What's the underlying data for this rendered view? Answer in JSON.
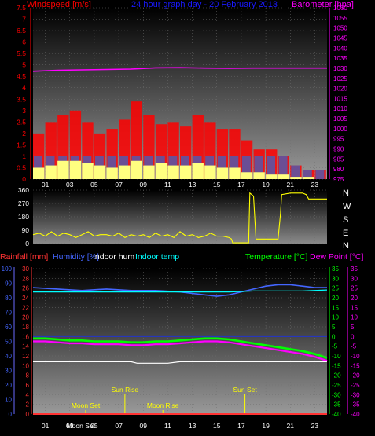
{
  "colors": {
    "background": "#000000",
    "wind_speed": "#ff0000",
    "wind_avg": "#ffff80",
    "wind_gust_base": "#3366cc",
    "barometer": "#ff00ff",
    "title": "#1a1aff",
    "direction": "#ffff00",
    "rainfall": "#ff3333",
    "humidity": "#4466ff",
    "indoor_hum": "#ffffff",
    "indoor_temp": "#00ffff",
    "temperature": "#00ff00",
    "dew_point": "#ff00ff",
    "moon_sun": "#ffff00",
    "axis_left_bottom": "#6a6aff",
    "gridlines": "#707070"
  },
  "top_panel": {
    "left_label": "Windspeed [m/s]",
    "title": "24 hour graph day - 20 February 2013",
    "right_label": "Barometer [hpa]"
  },
  "direction_panel": {
    "compass_labels": [
      "N",
      "W",
      "S",
      "E",
      "N"
    ]
  },
  "bottom_panel": {
    "labels": {
      "rainfall": "Rainfall [mm]",
      "humidity": "Humidity [%]",
      "indoor_hum": "Indoor hum",
      "indoor_temp": "Indoor temp",
      "temperature": "Temperature [°C]",
      "dew_point": "Dew Point [°C]"
    },
    "events": [
      {
        "label": "Moon Set",
        "hour": 4.3,
        "tier": "low"
      },
      {
        "label": "Sun Rise",
        "hour": 7.5,
        "tier": "high"
      },
      {
        "label": "Moon Rise",
        "hour": 10.6,
        "tier": "low"
      },
      {
        "label": "Sun Set",
        "hour": 17.3,
        "tier": "high"
      },
      {
        "label": "Moon Set",
        "hour": 3.9,
        "tier": "bottom"
      }
    ]
  },
  "chart_data": [
    {
      "type": "area",
      "title": "24 hour graph day - 20 February 2013",
      "x_ticks": [
        "01",
        "03",
        "05",
        "07",
        "09",
        "11",
        "13",
        "15",
        "17",
        "19",
        "21",
        "23"
      ],
      "xlim_hours": [
        0,
        24
      ],
      "left_axis": {
        "label": "Windspeed [m/s]",
        "ylim": [
          0,
          7.5
        ],
        "ticks": [
          "0",
          "0.5",
          "1",
          "1.5",
          "2",
          "2.5",
          "3",
          "3.5",
          "4",
          "4.5",
          "5",
          "5.5",
          "6",
          "6.5",
          "7",
          "7.5"
        ]
      },
      "right_axis": {
        "label": "Barometer [hpa]",
        "ylim": [
          975,
          1060
        ],
        "ticks": [
          "975",
          "980",
          "985",
          "990",
          "995",
          "1000",
          "1005",
          "1010",
          "1015",
          "1020",
          "1025",
          "1030",
          "1035",
          "1040",
          "1045",
          "1050",
          "1055",
          "1060"
        ]
      },
      "series": [
        {
          "name": "Windspeed",
          "axis": "left",
          "style": "bars",
          "x": [
            0.5,
            1.5,
            2.5,
            3.5,
            4.5,
            5.5,
            6.5,
            7.5,
            8.5,
            9.5,
            10.5,
            11.5,
            12.5,
            13.5,
            14.5,
            15.5,
            16.5,
            17.5,
            18.5,
            19.5,
            20.5,
            21.5,
            22.5,
            23.5
          ],
          "values": [
            2.0,
            2.5,
            2.8,
            3.0,
            2.5,
            2.0,
            2.2,
            2.6,
            3.4,
            2.8,
            2.4,
            2.5,
            2.3,
            2.8,
            2.5,
            2.2,
            2.2,
            1.7,
            1.3,
            1.3,
            1.0,
            0.6,
            0.4,
            0.4
          ]
        },
        {
          "name": "Wind avg",
          "axis": "left",
          "style": "bars",
          "x": [
            0.5,
            1.5,
            2.5,
            3.5,
            4.5,
            5.5,
            6.5,
            7.5,
            8.5,
            9.5,
            10.5,
            11.5,
            12.5,
            13.5,
            14.5,
            15.5,
            16.5,
            17.5,
            18.5,
            19.5,
            20.5,
            21.5,
            22.5,
            23.5
          ],
          "values": [
            0.5,
            0.6,
            0.8,
            0.8,
            0.7,
            0.6,
            0.5,
            0.6,
            0.8,
            0.6,
            0.7,
            0.6,
            0.6,
            0.7,
            0.6,
            0.5,
            0.5,
            0.3,
            0.3,
            0.2,
            0.2,
            0.1,
            0.1,
            0.0
          ]
        },
        {
          "name": "Barometer",
          "axis": "right",
          "style": "line",
          "x": [
            0,
            2,
            4,
            6,
            8,
            10,
            12,
            14,
            16,
            18,
            20,
            22,
            24
          ],
          "values": [
            1028.5,
            1029.0,
            1029.2,
            1029.4,
            1029.6,
            1030.2,
            1030.3,
            1030.1,
            1030.0,
            1030.1,
            1030.1,
            1030.1,
            1030.1
          ]
        }
      ]
    },
    {
      "type": "line",
      "x_ticks": [],
      "xlim_hours": [
        0,
        24
      ],
      "left_axis": {
        "label": "",
        "ylim": [
          0,
          360
        ],
        "ticks": [
          "0",
          "90",
          "180",
          "270",
          "360"
        ]
      },
      "series": [
        {
          "name": "Wind direction",
          "axis": "left",
          "style": "line",
          "x": [
            0,
            0.5,
            1,
            1.5,
            2,
            2.5,
            3,
            3.5,
            4,
            4.5,
            5,
            5.5,
            6,
            6.5,
            7,
            7.5,
            8,
            8.5,
            9,
            9.5,
            10,
            10.5,
            11,
            11.5,
            12,
            12.5,
            13,
            13.5,
            14,
            14.5,
            15,
            15.5,
            16,
            16.2,
            16.3,
            17,
            17.6,
            17.7,
            18,
            18.2,
            18.3,
            19,
            20,
            20.2,
            20.3,
            21,
            22,
            22.3,
            22.5,
            23,
            24
          ],
          "values": [
            60,
            70,
            50,
            80,
            50,
            70,
            60,
            40,
            60,
            80,
            50,
            60,
            60,
            50,
            70,
            40,
            60,
            50,
            60,
            40,
            70,
            50,
            60,
            40,
            80,
            50,
            60,
            40,
            50,
            70,
            50,
            50,
            40,
            30,
            5,
            5,
            5,
            340,
            320,
            30,
            30,
            30,
            30,
            200,
            330,
            340,
            340,
            330,
            300,
            300,
            300
          ]
        }
      ]
    },
    {
      "type": "line",
      "x_ticks": [
        "01",
        "03",
        "05",
        "07",
        "09",
        "11",
        "13",
        "15",
        "17",
        "19",
        "21",
        "23"
      ],
      "xlim_hours": [
        0,
        24
      ],
      "left_axis": {
        "label": "Humidity [%]",
        "ylim": [
          0,
          100
        ],
        "ticks": [
          "0",
          "10",
          "20",
          "30",
          "40",
          "50",
          "60",
          "70",
          "80",
          "90",
          "100"
        ]
      },
      "rain_axis": {
        "label": "Rainfall [mm]",
        "ylim": [
          0,
          30
        ],
        "ticks": [
          "0",
          "2",
          "4",
          "6",
          "8",
          "10",
          "12",
          "14",
          "16",
          "18",
          "20",
          "22",
          "24",
          "26",
          "28",
          "30"
        ]
      },
      "right_axis": {
        "label": "Temperature [°C]",
        "ylim": [
          -40,
          35
        ],
        "ticks": [
          "35",
          "30",
          "25",
          "20",
          "15",
          "10",
          "5",
          "0",
          "-5",
          "-10",
          "-15",
          "-20",
          "-25",
          "-30",
          "-35",
          "-40"
        ]
      },
      "series": [
        {
          "name": "Humidity",
          "axis": "left",
          "x": [
            0,
            2,
            4,
            6,
            8,
            10,
            12,
            13,
            14,
            15,
            16,
            17,
            18,
            19,
            20,
            21,
            22,
            23,
            24
          ],
          "values": [
            87,
            86,
            85,
            86,
            85,
            85,
            84,
            83,
            82,
            81,
            82,
            84,
            86,
            88,
            89,
            89,
            88,
            87,
            87
          ]
        },
        {
          "name": "Indoor hum",
          "axis": "left",
          "x": [
            0,
            3,
            6,
            7,
            8,
            8.5,
            9,
            10,
            11,
            12,
            14,
            16,
            18,
            20,
            22,
            24
          ],
          "values": [
            36,
            36,
            36,
            36,
            36,
            35,
            35,
            35,
            35,
            36,
            36,
            36,
            36,
            36,
            36,
            36
          ]
        },
        {
          "name": "Indoor temp",
          "axis": "right",
          "x": [
            0,
            4,
            8,
            12,
            16,
            18,
            20,
            22,
            24
          ],
          "values": [
            23,
            23,
            23,
            23,
            23,
            23.5,
            23.5,
            23.5,
            24
          ]
        },
        {
          "name": "Temperature",
          "axis": "right",
          "x": [
            0,
            1,
            2,
            3,
            4,
            5,
            6,
            7,
            8,
            9,
            10,
            11,
            12,
            13,
            14,
            15,
            16,
            17,
            18,
            19,
            20,
            21,
            22,
            23,
            24
          ],
          "values": [
            -1,
            -1,
            -1.5,
            -2,
            -2,
            -2.5,
            -2.5,
            -2.5,
            -3,
            -3,
            -2.5,
            -2.5,
            -2,
            -1.5,
            -1,
            -1,
            -1.5,
            -2.5,
            -3.5,
            -4.5,
            -5.5,
            -6.5,
            -7.5,
            -9,
            -11
          ]
        },
        {
          "name": "Dew Point",
          "axis": "right",
          "x": [
            0,
            1,
            2,
            3,
            4,
            5,
            6,
            7,
            8,
            9,
            10,
            11,
            12,
            13,
            14,
            15,
            16,
            17,
            18,
            19,
            20,
            21,
            22,
            23,
            24
          ],
          "values": [
            -2.5,
            -2.5,
            -3,
            -3.5,
            -3.5,
            -4,
            -4,
            -4,
            -4.5,
            -4.5,
            -4,
            -4,
            -3.5,
            -3,
            -2.5,
            -2.5,
            -3,
            -4,
            -5,
            -6,
            -7,
            -8,
            -9,
            -10.5,
            -12.5
          ]
        },
        {
          "name": "Rainfall",
          "axis": "rain",
          "x": [
            0,
            24
          ],
          "values": [
            0,
            0
          ]
        }
      ]
    }
  ]
}
